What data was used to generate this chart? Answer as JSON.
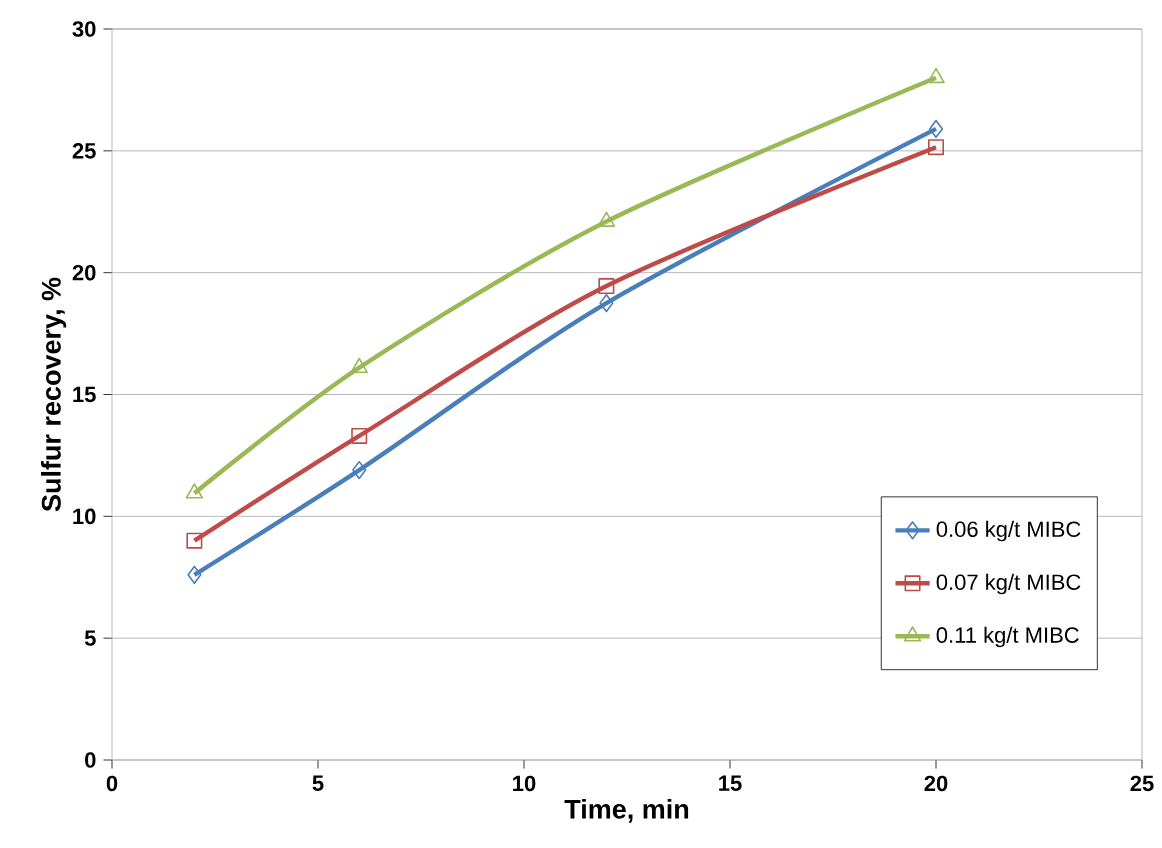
{
  "chart_data": {
    "type": "line",
    "xlabel": "Time, min",
    "ylabel": "Sulfur recovery, %",
    "xlim": [
      0,
      25
    ],
    "xticks": [
      0,
      5,
      10,
      15,
      20,
      25
    ],
    "ylim": [
      0,
      30
    ],
    "yticks": [
      0,
      5,
      10,
      15,
      20,
      25,
      30
    ],
    "grid": "y",
    "legend": "bottom right",
    "series": [
      {
        "name": "0.06 kg/t MIBC",
        "color": "#4a7ebb",
        "marker": "diamond",
        "x": [
          2,
          6,
          12,
          20
        ],
        "values": [
          7.6,
          11.9,
          18.75,
          25.9
        ]
      },
      {
        "name": "0.07 kg/t MIBC",
        "color": "#be4b48",
        "marker": "square",
        "x": [
          2,
          6,
          12,
          20
        ],
        "values": [
          9.0,
          13.3,
          19.45,
          25.15
        ]
      },
      {
        "name": "0.11 kg/t MIBC",
        "color": "#98b954",
        "marker": "triangle",
        "x": [
          2,
          6,
          12,
          20
        ],
        "values": [
          10.95,
          16.1,
          22.1,
          28.0
        ]
      }
    ]
  }
}
